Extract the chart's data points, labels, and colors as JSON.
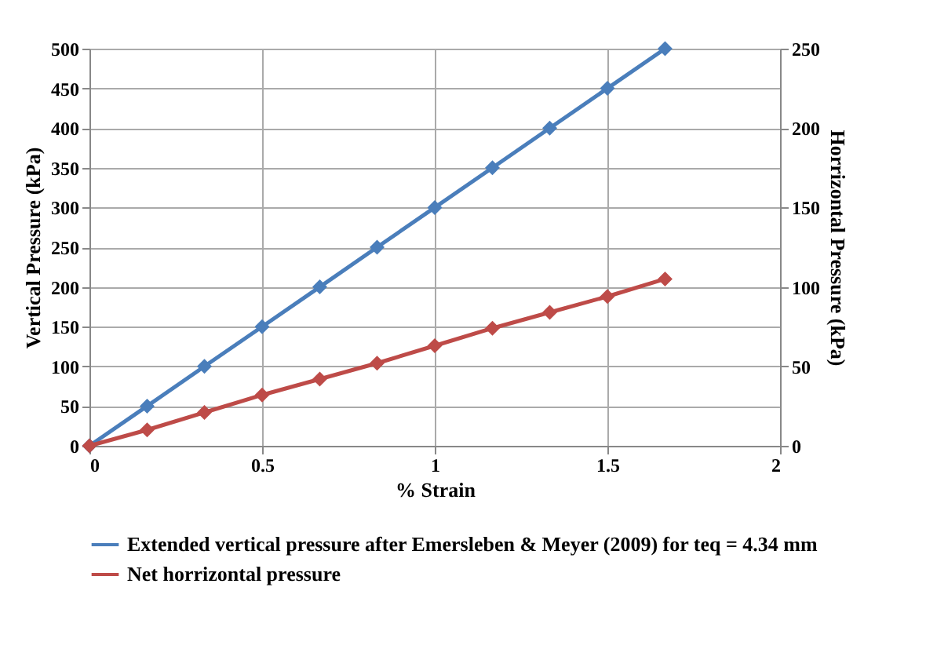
{
  "chart_data": {
    "type": "line",
    "xlabel": "% Strain",
    "ylabel": "Vertical Pressure (kPa)",
    "y2label": "Horrizontal Pressure (kPa)",
    "x": [
      0,
      0.167,
      0.333,
      0.5,
      0.667,
      0.833,
      1,
      1.167,
      1.333,
      1.5,
      1.667
    ],
    "series": [
      {
        "name": "Extended vertical pressure after Emersleben & Meyer (2009) for teq = 4.34 mm",
        "color": "#4a7ebb",
        "values": [
          0,
          50,
          100,
          150,
          200,
          250,
          300,
          350,
          400,
          450,
          500
        ]
      },
      {
        "name": "Net horrizontal pressure",
        "color": "#be4b48",
        "axis": "y2",
        "values": [
          0,
          10,
          21,
          32,
          42,
          52,
          63,
          74,
          84,
          94,
          105
        ]
      }
    ],
    "xlim": [
      0,
      2
    ],
    "xticks": [
      0,
      0.5,
      1,
      1.5,
      2
    ],
    "ylim": [
      0,
      500
    ],
    "yticks": [
      0,
      50,
      100,
      150,
      200,
      250,
      300,
      350,
      400,
      450,
      500
    ],
    "y2lim": [
      0,
      250
    ],
    "y2ticks": [
      0,
      50,
      100,
      150,
      200,
      250
    ],
    "grid": true,
    "legend": "bottom",
    "marker": "diamond",
    "line_style": "solid"
  }
}
